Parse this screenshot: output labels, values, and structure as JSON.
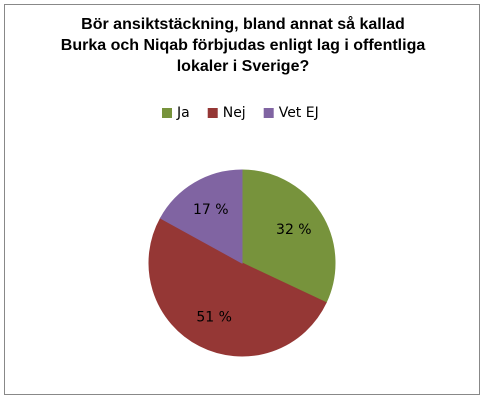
{
  "chart_data": {
    "type": "pie",
    "title": "Bör ansiktstäckning, bland annat så kallad Burka och Niqab förbjudas enligt lag i offentliga lokaler i Sverige?",
    "categories": [
      "Ja",
      "Nej",
      "Vet EJ"
    ],
    "values": [
      32,
      51,
      17
    ],
    "value_labels": [
      "32 %",
      "51 %",
      "17 %"
    ],
    "colors": [
      "#77933c",
      "#953735",
      "#8064a2"
    ],
    "legend": "top"
  }
}
